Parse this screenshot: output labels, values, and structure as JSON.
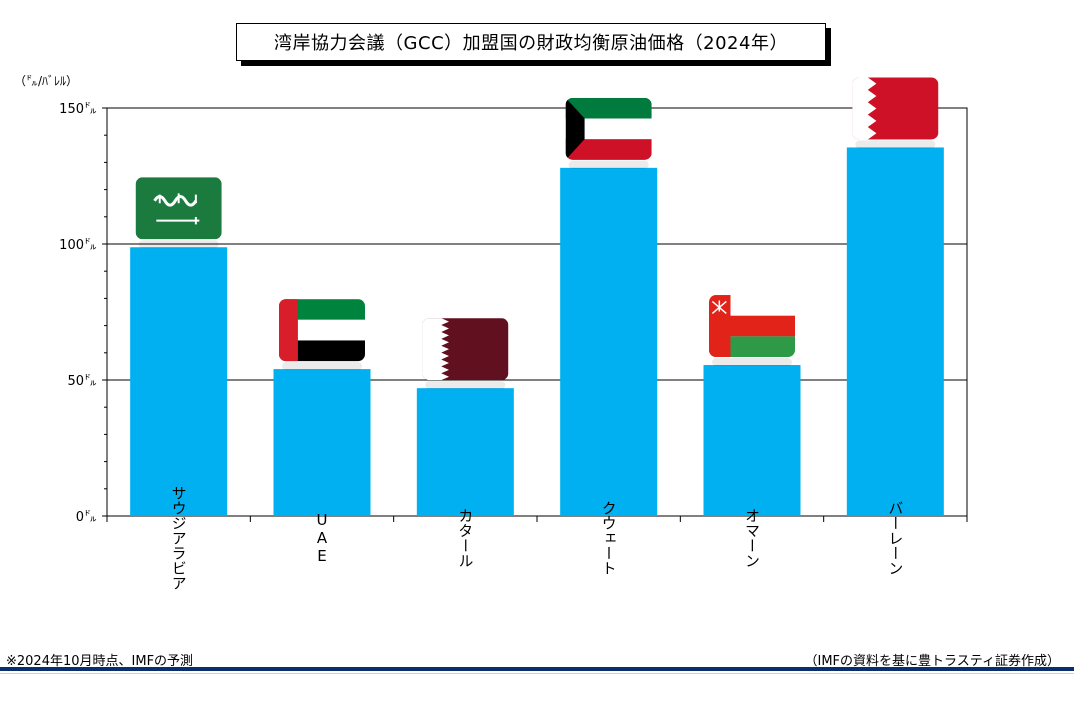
{
  "title": "湾岸協力会議（GCC）加盟国の財政均衡原油価格（2024年）",
  "unit": "（㌦/ﾊﾞﾚﾙ）",
  "footnote": "※2024年10月時点、IMFの予測",
  "source": "（IMFの資料を基に豊トラスティ証券作成）",
  "colors": {
    "bar": "#00b0f0",
    "axis": "#000000",
    "grid": "#000000",
    "rule": "#0a2d6e"
  },
  "chart_data": {
    "type": "bar",
    "categories": [
      "サウジアラビア",
      "UAE",
      "カタール",
      "クウェート",
      "オマーン",
      "バーレーン"
    ],
    "values": [
      98.8,
      54.0,
      47.0,
      128.0,
      55.5,
      135.5
    ],
    "ylim": [
      0,
      150
    ],
    "yticks": [
      0,
      50,
      100,
      150
    ],
    "ytick_labels": [
      "0㌦",
      "50㌦",
      "100㌦",
      "150㌦"
    ],
    "grid": true,
    "flags": [
      "saudi-arabia-flag",
      "uae-flag",
      "qatar-flag",
      "kuwait-flag",
      "oman-flag",
      "bahrain-flag"
    ]
  }
}
